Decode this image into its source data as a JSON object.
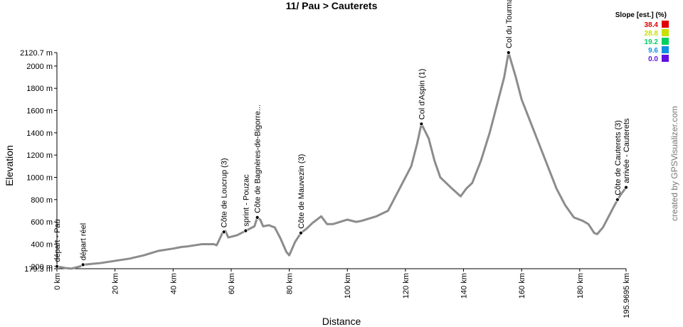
{
  "chart_data": {
    "type": "line",
    "title": "11/ Pau > Cauterets",
    "x_label": "Distance",
    "y_label": "Elevation",
    "credit": "created by GPSVisualizer.com",
    "x": [
      0,
      3,
      5,
      8,
      9,
      15,
      20,
      25,
      30,
      35,
      40,
      43,
      45,
      50,
      54,
      55,
      57,
      58,
      59,
      62,
      65,
      68,
      69,
      70,
      71,
      73,
      75,
      77,
      79,
      80,
      82,
      84,
      86,
      88,
      91,
      93,
      95,
      100,
      103,
      105,
      110,
      114,
      118,
      122,
      124,
      125.5,
      128,
      130,
      132,
      136,
      139,
      141,
      143,
      146,
      149,
      152,
      154,
      155.5,
      158,
      160,
      163,
      166,
      169,
      172,
      175,
      178,
      181,
      183,
      185,
      186,
      188,
      190,
      192,
      194,
      195.9695
    ],
    "series": [
      {
        "color": "#8c8c8c",
        "values": [
          200,
          185,
          180,
          200,
          215,
          230,
          250,
          270,
          300,
          340,
          360,
          375,
          380,
          400,
          400,
          390,
          500,
          520,
          460,
          480,
          520,
          560,
          640,
          620,
          560,
          570,
          550,
          450,
          330,
          300,
          420,
          500,
          540,
          590,
          650,
          580,
          580,
          620,
          600,
          610,
          650,
          700,
          900,
          1100,
          1300,
          1480,
          1350,
          1150,
          1000,
          900,
          830,
          900,
          950,
          1150,
          1400,
          1700,
          1900,
          2120.7,
          1900,
          1700,
          1500,
          1300,
          1100,
          900,
          750,
          640,
          610,
          580,
          500,
          490,
          550,
          650,
          750,
          840,
          910
        ]
      }
    ],
    "xlim": [
      0,
      195.9695
    ],
    "xticks": [
      {
        "value": 0,
        "label": "0 km"
      },
      {
        "value": 20,
        "label": "20 km"
      },
      {
        "value": 40,
        "label": "40 km"
      },
      {
        "value": 60,
        "label": "60 km"
      },
      {
        "value": 80,
        "label": "80 km"
      },
      {
        "value": 100,
        "label": "100 km"
      },
      {
        "value": 120,
        "label": "120 km"
      },
      {
        "value": 140,
        "label": "140 km"
      },
      {
        "value": 160,
        "label": "160 km"
      },
      {
        "value": 180,
        "label": "180 km"
      },
      {
        "value": 195.9695,
        "label": "195.9695 km"
      }
    ],
    "ylim": [
      179.3,
      2120.7
    ],
    "yticks": [
      {
        "value": 179.3,
        "label": "179.3 m"
      },
      {
        "value": 200,
        "label": "200 m"
      },
      {
        "value": 400,
        "label": "400 m"
      },
      {
        "value": 600,
        "label": "600 m"
      },
      {
        "value": 800,
        "label": "800 m"
      },
      {
        "value": 1000,
        "label": "1000 m"
      },
      {
        "value": 1200,
        "label": "1200 m"
      },
      {
        "value": 1400,
        "label": "1400 m"
      },
      {
        "value": 1600,
        "label": "1600 m"
      },
      {
        "value": 1800,
        "label": "1800 m"
      },
      {
        "value": 2000,
        "label": "2000 m"
      },
      {
        "value": 2120.7,
        "label": "2120.7 m"
      }
    ],
    "annotations": [
      {
        "x": 0,
        "y": 200,
        "label": "départ - Pau"
      },
      {
        "x": 9,
        "y": 215,
        "label": "départ réel"
      },
      {
        "x": 57.5,
        "y": 510,
        "label": "Côte de Loucrup (3)"
      },
      {
        "x": 65,
        "y": 520,
        "label": "sprint - Pouzac"
      },
      {
        "x": 69,
        "y": 640,
        "label": "Côte de Bagnères-de-Bigorre..."
      },
      {
        "x": 84,
        "y": 500,
        "label": "Côte de Mauvezin (3)"
      },
      {
        "x": 125.5,
        "y": 1480,
        "label": "Col d'Aspin (1)"
      },
      {
        "x": 155.5,
        "y": 2120.7,
        "label": "Col du Tourmalet"
      },
      {
        "x": 193,
        "y": 800,
        "label": "Côte de Cauterets (3)"
      },
      {
        "x": 195.9695,
        "y": 910,
        "label": "arrivée - Cauterets"
      }
    ],
    "legend": {
      "title": "Slope [est.] (%)",
      "entries": [
        {
          "value": 38.4,
          "color": "#e00000"
        },
        {
          "value": 28.8,
          "color": "#c8e000"
        },
        {
          "value": 19.2,
          "color": "#00d060"
        },
        {
          "value": 9.6,
          "color": "#1090e0"
        },
        {
          "value": {
            "value": 0,
            "label": "0.0"
          },
          "color": "#6010e0"
        }
      ]
    }
  }
}
